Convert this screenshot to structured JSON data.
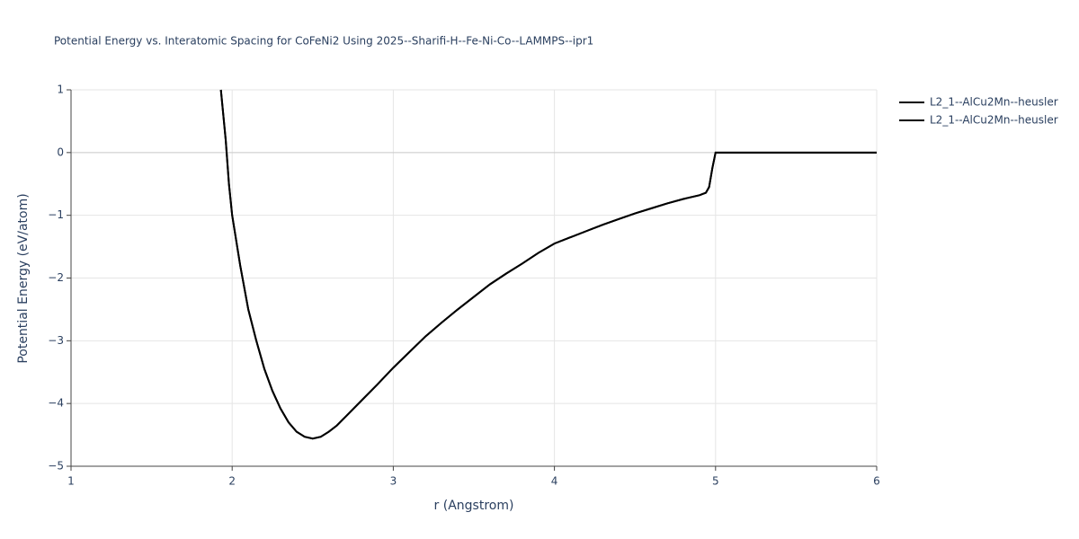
{
  "chart_data": {
    "type": "line",
    "title": "Potential Energy vs. Interatomic Spacing for CoFeNi2 Using 2025--Sharifi-H--Fe-Ni-Co--LAMMPS--ipr1",
    "x_label": "r (Angstrom)",
    "y_label": "Potential Energy (eV/atom)",
    "xlim": [
      1,
      6
    ],
    "ylim": [
      -5,
      1
    ],
    "xticks": [
      1,
      2,
      3,
      4,
      5,
      6
    ],
    "yticks": [
      {
        "value": -5,
        "label": "−5"
      },
      {
        "value": -4,
        "label": "−4"
      },
      {
        "value": -3,
        "label": "−3"
      },
      {
        "value": -2,
        "label": "−2"
      },
      {
        "value": -1,
        "label": "−1"
      },
      0,
      1
    ],
    "grid": true,
    "x": [
      1.93,
      1.96,
      1.98,
      2.0,
      2.05,
      2.1,
      2.15,
      2.2,
      2.25,
      2.3,
      2.35,
      2.4,
      2.45,
      2.5,
      2.55,
      2.6,
      2.65,
      2.7,
      2.8,
      2.9,
      3.0,
      3.1,
      3.2,
      3.3,
      3.4,
      3.5,
      3.6,
      3.7,
      3.8,
      3.9,
      4.0,
      4.1,
      4.2,
      4.3,
      4.4,
      4.5,
      4.6,
      4.7,
      4.8,
      4.9,
      4.94,
      4.96,
      4.98,
      5.0,
      6.0
    ],
    "series": [
      {
        "name": "L2_1--AlCu2Mn--heusler",
        "color": "#000000",
        "values": [
          1.0,
          0.2,
          -0.5,
          -1.0,
          -1.8,
          -2.5,
          -3.0,
          -3.45,
          -3.8,
          -4.08,
          -4.3,
          -4.45,
          -4.53,
          -4.56,
          -4.53,
          -4.45,
          -4.35,
          -4.22,
          -3.96,
          -3.7,
          -3.43,
          -3.18,
          -2.93,
          -2.71,
          -2.5,
          -2.3,
          -2.1,
          -1.93,
          -1.77,
          -1.6,
          -1.45,
          -1.35,
          -1.25,
          -1.15,
          -1.06,
          -0.97,
          -0.89,
          -0.81,
          -0.74,
          -0.68,
          -0.64,
          -0.55,
          -0.25,
          0,
          0
        ]
      },
      {
        "name": "L2_1--AlCu2Mn--heusler",
        "color": "#000000",
        "values": [
          1.0,
          0.2,
          -0.5,
          -1.0,
          -1.8,
          -2.5,
          -3.0,
          -3.45,
          -3.8,
          -4.08,
          -4.3,
          -4.45,
          -4.53,
          -4.56,
          -4.53,
          -4.45,
          -4.35,
          -4.22,
          -3.96,
          -3.7,
          -3.43,
          -3.18,
          -2.93,
          -2.71,
          -2.5,
          -2.3,
          -2.1,
          -1.93,
          -1.77,
          -1.6,
          -1.45,
          -1.35,
          -1.25,
          -1.15,
          -1.06,
          -0.97,
          -0.89,
          -0.81,
          -0.74,
          -0.68,
          -0.64,
          -0.55,
          -0.25,
          0,
          0
        ]
      }
    ]
  }
}
